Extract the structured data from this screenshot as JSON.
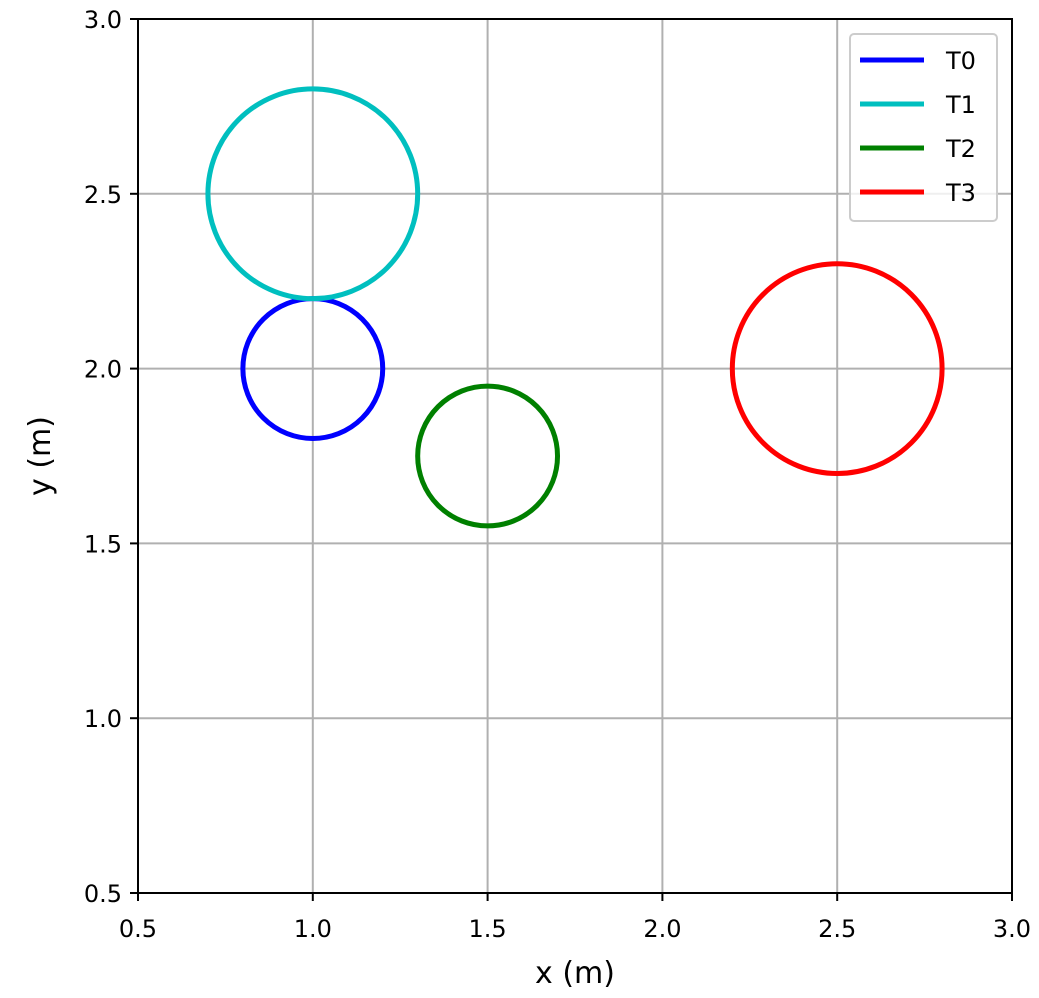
{
  "chart_data": {
    "type": "line",
    "title": "",
    "xlabel": "x (m)",
    "ylabel": "y (m)",
    "xlim": [
      0.5,
      3.0
    ],
    "ylim": [
      0.5,
      3.0
    ],
    "xticks": [
      "0.5",
      "1.0",
      "1.5",
      "2.0",
      "2.5",
      "3.0"
    ],
    "yticks": [
      "0.5",
      "1.0",
      "1.5",
      "2.0",
      "2.5",
      "3.0"
    ],
    "grid": true,
    "legend_position": "top-right",
    "series": [
      {
        "name": "T0",
        "color": "#0000ff",
        "shape": "circle",
        "center": [
          1.0,
          2.0
        ],
        "radius": 0.2
      },
      {
        "name": "T1",
        "color": "#00bfbf",
        "shape": "circle",
        "center": [
          1.0,
          2.5
        ],
        "radius": 0.3
      },
      {
        "name": "T2",
        "color": "#008000",
        "shape": "circle",
        "center": [
          1.5,
          1.75
        ],
        "radius": 0.2
      },
      {
        "name": "T3",
        "color": "#ff0000",
        "shape": "circle",
        "center": [
          2.5,
          2.0
        ],
        "radius": 0.3
      }
    ]
  }
}
